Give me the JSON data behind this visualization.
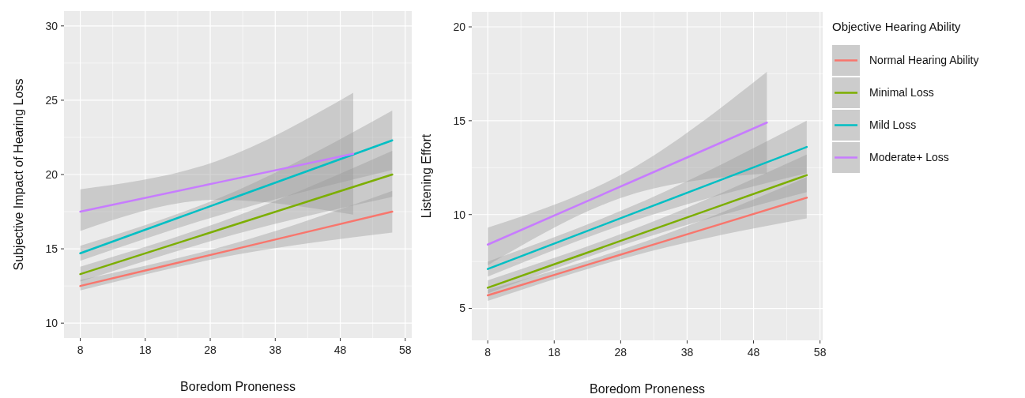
{
  "chart_data": [
    {
      "type": "line",
      "xlabel": "Boredom Proneness",
      "ylabel": "Subjective Impact of Hearing Loss",
      "xlim": [
        5.5,
        59
      ],
      "xticks": [
        8,
        18,
        28,
        38,
        48,
        58
      ],
      "ylim": [
        9,
        31
      ],
      "yticks": [
        10,
        15,
        20,
        25,
        30
      ],
      "grid": true,
      "legend": false,
      "series": [
        {
          "color": "#f8766d",
          "x": [
            8,
            32,
            56
          ],
          "values": [
            12.5,
            15.0,
            17.5
          ],
          "lower": [
            12.2,
            14.6,
            16.1
          ],
          "upper": [
            12.9,
            15.4,
            18.9
          ]
        },
        {
          "color": "#7cae00",
          "x": [
            8,
            32,
            56
          ],
          "values": [
            13.3,
            16.65,
            20.0
          ],
          "lower": [
            12.8,
            16.0,
            18.5
          ],
          "upper": [
            13.8,
            17.2,
            21.6
          ]
        },
        {
          "color": "#00bfc4",
          "x": [
            8,
            32,
            56
          ],
          "values": [
            14.7,
            18.5,
            22.3
          ],
          "lower": [
            14.2,
            17.6,
            20.3
          ],
          "upper": [
            15.2,
            18.9,
            24.3
          ]
        },
        {
          "color": "#c77cff",
          "x": [
            8,
            29,
            50
          ],
          "values": [
            17.5,
            19.45,
            21.4
          ],
          "lower": [
            16.2,
            18.3,
            17.3
          ],
          "upper": [
            19.0,
            20.9,
            25.5
          ]
        }
      ]
    },
    {
      "type": "line",
      "xlabel": "Boredom Proneness",
      "ylabel": "Listening Effort",
      "legend_title": "Objective Hearing Ability",
      "legend": "right",
      "xlim": [
        5.6,
        58.4
      ],
      "xticks": [
        8,
        18,
        28,
        38,
        48,
        58
      ],
      "ylim": [
        3.3,
        20.8
      ],
      "yticks": [
        5,
        10,
        15,
        20
      ],
      "grid": true,
      "series": [
        {
          "name": "Normal Hearing Ability",
          "color": "#f8766d",
          "x": [
            8,
            32,
            56
          ],
          "values": [
            5.7,
            8.3,
            10.9
          ],
          "lower": [
            5.4,
            8.0,
            9.8
          ],
          "upper": [
            6.0,
            8.6,
            12.0
          ]
        },
        {
          "name": "Minimal Loss",
          "color": "#7cae00",
          "x": [
            8,
            32,
            56
          ],
          "values": [
            6.1,
            9.1,
            12.1
          ],
          "lower": [
            5.8,
            8.8,
            11.2
          ],
          "upper": [
            6.5,
            9.5,
            13.2
          ]
        },
        {
          "name": "Mild Loss",
          "color": "#00bfc4",
          "x": [
            8,
            32,
            56
          ],
          "values": [
            7.1,
            10.35,
            13.6
          ],
          "lower": [
            6.7,
            9.9,
            12.2
          ],
          "upper": [
            7.5,
            10.8,
            15.0
          ]
        },
        {
          "name": "Moderate+ Loss",
          "color": "#c77cff",
          "x": [
            8,
            29,
            50
          ],
          "values": [
            8.4,
            11.65,
            14.9
          ],
          "lower": [
            7.3,
            11.0,
            12.2
          ],
          "upper": [
            9.3,
            12.3,
            17.6
          ]
        }
      ]
    }
  ]
}
